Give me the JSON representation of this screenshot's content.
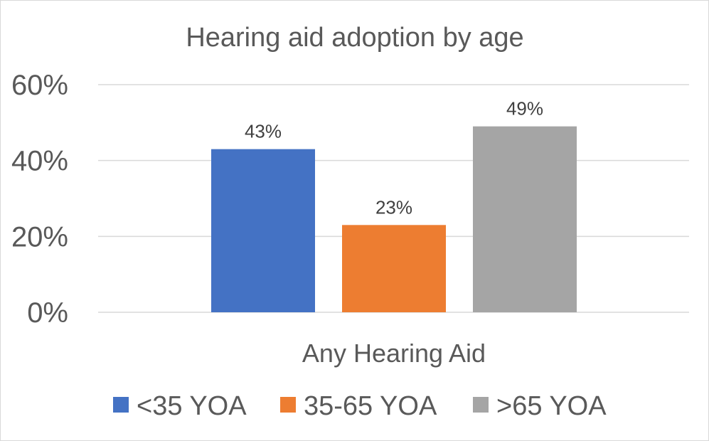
{
  "chart_data": {
    "type": "bar",
    "title": "Hearing aid adoption by age",
    "categories": [
      "Any Hearing Aid"
    ],
    "series": [
      {
        "name": "<35 YOA",
        "values": [
          43
        ],
        "color": "#4472C4",
        "label": "43%"
      },
      {
        "name": "35-65 YOA",
        "values": [
          23
        ],
        "color": "#ED7D31",
        "label": "23%"
      },
      {
        "name": ">65 YOA",
        "values": [
          49
        ],
        "color": "#A5A5A5",
        "label": "49%"
      }
    ],
    "ylim": [
      0,
      60
    ],
    "yticks": [
      {
        "value": 0,
        "label": "0%"
      },
      {
        "value": 20,
        "label": "20%"
      },
      {
        "value": 40,
        "label": "40%"
      },
      {
        "value": 60,
        "label": "60%"
      }
    ],
    "grid": true,
    "legend_position": "bottom"
  }
}
